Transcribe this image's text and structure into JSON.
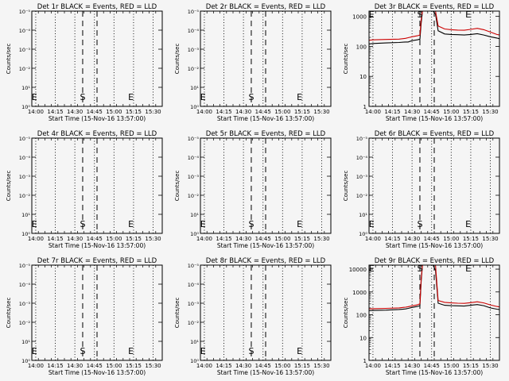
{
  "chart_data": [
    {
      "type": "line",
      "title": "Det 1r BLACK = Events, RED = LLD",
      "xlabel": "Start Time (15-Nov-16 13:57:00)",
      "ylabel": "Counts/sec",
      "ylog": true,
      "y_tick_labels": [
        "10⁰",
        "10¹",
        "10⁻²",
        "10⁻³",
        "10⁻⁴",
        "10⁻⁵"
      ],
      "x_tick_labels": [
        "14:00",
        "14:15",
        "14:30",
        "14:45",
        "15:00",
        "15:15",
        "15:30"
      ],
      "x_range": [
        "13:57",
        "15:37"
      ],
      "markers": [
        {
          "label": "E",
          "time": "13:59"
        },
        {
          "label": "S",
          "time": "14:36"
        },
        {
          "label": "E",
          "time": "15:13"
        }
      ],
      "series": []
    },
    {
      "type": "line",
      "title": "Det 2r BLACK = Events, RED = LLD",
      "xlabel": "Start Time (15-Nov-16 13:57:00)",
      "ylabel": "Counts/sec",
      "ylog": true,
      "y_tick_labels": [
        "10⁰",
        "10¹",
        "10⁻²",
        "10⁻³",
        "10⁻⁴",
        "10⁻⁵"
      ],
      "x_tick_labels": [
        "14:00",
        "14:15",
        "14:30",
        "14:45",
        "15:00",
        "15:15",
        "15:30"
      ],
      "x_range": [
        "13:57",
        "15:37"
      ],
      "markers": [
        {
          "label": "E",
          "time": "13:59"
        },
        {
          "label": "S",
          "time": "14:36"
        },
        {
          "label": "E",
          "time": "15:13"
        }
      ],
      "series": []
    },
    {
      "type": "line",
      "title": "Det 3r BLACK = Events, RED = LLD",
      "xlabel": "Start Time (15-Nov-16 13:57:00)",
      "ylabel": "Counts/sec",
      "ylog": true,
      "y_tick_labels": [
        "1",
        "10",
        "100",
        "1000"
      ],
      "x_tick_labels": [
        "14:00",
        "14:15",
        "14:30",
        "14:45",
        "15:00",
        "15:15",
        "15:30"
      ],
      "x_range": [
        "13:57",
        "15:37"
      ],
      "ylim": [
        1,
        1500
      ],
      "markers": [
        {
          "label": "E",
          "time": "13:59"
        },
        {
          "label": "S",
          "time": "14:36"
        },
        {
          "label": "E",
          "time": "15:13"
        }
      ],
      "series": [
        {
          "color": "#000000",
          "times": [
            "13:57",
            "14:00",
            "14:10",
            "14:20",
            "14:25",
            "14:27",
            "14:30",
            "14:34",
            "14:36",
            "14:37",
            "14:38",
            "14:40",
            "14:44",
            "14:46",
            "14:48",
            "14:50",
            "14:55",
            "15:00",
            "15:05",
            "15:10",
            "15:15",
            "15:20",
            "15:25",
            "15:30",
            "15:35",
            "15:37"
          ],
          "values": [
            120,
            125,
            130,
            135,
            140,
            140,
            155,
            165,
            175,
            600,
            1500,
            1500,
            1500,
            1500,
            1200,
            330,
            260,
            250,
            245,
            240,
            250,
            265,
            240,
            210,
            190,
            180
          ]
        },
        {
          "color": "#cc0000",
          "times": [
            "13:57",
            "14:00",
            "14:10",
            "14:20",
            "14:25",
            "14:27",
            "14:30",
            "14:34",
            "14:36",
            "14:37",
            "14:38",
            "14:40",
            "14:44",
            "14:46",
            "14:48",
            "14:50",
            "14:55",
            "15:00",
            "15:05",
            "15:10",
            "15:15",
            "15:20",
            "15:25",
            "15:30",
            "15:35",
            "15:37"
          ],
          "values": [
            160,
            165,
            170,
            175,
            185,
            195,
            210,
            225,
            240,
            800,
            1500,
            1500,
            1500,
            1500,
            1500,
            480,
            380,
            360,
            350,
            345,
            370,
            400,
            360,
            300,
            250,
            240
          ]
        }
      ]
    },
    {
      "type": "line",
      "title": "Det 4r BLACK = Events, RED = LLD",
      "xlabel": "Start Time (15-Nov-16 13:57:00)",
      "ylabel": "Counts/sec",
      "ylog": true,
      "y_tick_labels": [
        "10⁰",
        "10¹",
        "10⁻²",
        "10⁻³",
        "10⁻⁴",
        "10⁻⁵"
      ],
      "x_tick_labels": [
        "14:00",
        "14:15",
        "14:30",
        "14:45",
        "15:00",
        "15:15",
        "15:30"
      ],
      "x_range": [
        "13:57",
        "15:37"
      ],
      "markers": [
        {
          "label": "E",
          "time": "13:59"
        },
        {
          "label": "S",
          "time": "14:36"
        },
        {
          "label": "E",
          "time": "15:13"
        }
      ],
      "series": []
    },
    {
      "type": "line",
      "title": "Det 5r BLACK = Events, RED = LLD",
      "xlabel": "Start Time (15-Nov-16 13:57:00)",
      "ylabel": "Counts/sec",
      "ylog": true,
      "y_tick_labels": [
        "10⁰",
        "10¹",
        "10⁻²",
        "10⁻³",
        "10⁻⁴",
        "10⁻⁵"
      ],
      "x_tick_labels": [
        "14:00",
        "14:15",
        "14:30",
        "14:45",
        "15:00",
        "15:15",
        "15:30"
      ],
      "x_range": [
        "13:57",
        "15:37"
      ],
      "markers": [
        {
          "label": "E",
          "time": "13:59"
        },
        {
          "label": "S",
          "time": "14:36"
        },
        {
          "label": "E",
          "time": "15:13"
        }
      ],
      "series": []
    },
    {
      "type": "line",
      "title": "Det 6r BLACK = Events, RED = LLD",
      "xlabel": "Start Time (15-Nov-16 13:57:00)",
      "ylabel": "Counts/sec",
      "ylog": true,
      "y_tick_labels": [
        "10⁰",
        "10¹",
        "10⁻²",
        "10⁻³",
        "10⁻⁴",
        "10⁻⁵"
      ],
      "x_tick_labels": [
        "14:00",
        "14:15",
        "14:30",
        "14:45",
        "15:00",
        "15:15",
        "15:30"
      ],
      "x_range": [
        "13:57",
        "15:37"
      ],
      "markers": [
        {
          "label": "E",
          "time": "13:59"
        },
        {
          "label": "S",
          "time": "14:36"
        },
        {
          "label": "E",
          "time": "15:13"
        }
      ],
      "series": []
    },
    {
      "type": "line",
      "title": "Det 7r BLACK = Events, RED = LLD",
      "xlabel": "Start Time (15-Nov-16 13:57:00)",
      "ylabel": "Counts/sec",
      "ylog": true,
      "y_tick_labels": [
        "10⁰",
        "10¹",
        "10⁻²",
        "10⁻³",
        "10⁻⁴",
        "10⁻⁵"
      ],
      "x_tick_labels": [
        "14:00",
        "14:15",
        "14:30",
        "14:45",
        "15:00",
        "15:15",
        "15:30"
      ],
      "x_range": [
        "13:57",
        "15:37"
      ],
      "markers": [
        {
          "label": "E",
          "time": "13:59"
        },
        {
          "label": "S",
          "time": "14:36"
        },
        {
          "label": "E",
          "time": "15:13"
        }
      ],
      "series": []
    },
    {
      "type": "line",
      "title": "Det 8r BLACK = Events, RED = LLD",
      "xlabel": "Start Time (15-Nov-16 13:57:00)",
      "ylabel": "Counts/sec",
      "ylog": true,
      "y_tick_labels": [
        "10⁰",
        "10¹",
        "10⁻²",
        "10⁻³",
        "10⁻⁴",
        "10⁻⁵"
      ],
      "x_tick_labels": [
        "14:00",
        "14:15",
        "14:30",
        "14:45",
        "15:00",
        "15:15",
        "15:30"
      ],
      "x_range": [
        "13:57",
        "15:37"
      ],
      "markers": [
        {
          "label": "E",
          "time": "13:59"
        },
        {
          "label": "S",
          "time": "14:36"
        },
        {
          "label": "E",
          "time": "15:13"
        }
      ],
      "series": []
    },
    {
      "type": "line",
      "title": "Det 9r BLACK = Events, RED = LLD",
      "xlabel": "Start Time (15-Nov-16 13:57:00)",
      "ylabel": "Counts/sec",
      "ylog": true,
      "y_tick_labels": [
        "1",
        "10",
        "100",
        "1000",
        "10000"
      ],
      "x_tick_labels": [
        "14:00",
        "14:15",
        "14:30",
        "14:45",
        "15:00",
        "15:15",
        "15:30"
      ],
      "x_range": [
        "13:57",
        "15:37"
      ],
      "ylim": [
        1,
        15000
      ],
      "markers": [
        {
          "label": "E",
          "time": "13:59"
        },
        {
          "label": "S",
          "time": "14:36"
        },
        {
          "label": "E",
          "time": "15:13"
        }
      ],
      "series": [
        {
          "color": "#000000",
          "times": [
            "13:57",
            "14:00",
            "14:10",
            "14:20",
            "14:25",
            "14:27",
            "14:30",
            "14:34",
            "14:36",
            "14:37",
            "14:38",
            "14:40",
            "14:44",
            "14:46",
            "14:48",
            "14:50",
            "14:55",
            "15:00",
            "15:05",
            "15:10",
            "15:15",
            "15:20",
            "15:25",
            "15:30",
            "15:35",
            "15:37"
          ],
          "values": [
            150,
            155,
            160,
            170,
            180,
            190,
            210,
            230,
            250,
            3000,
            15000,
            15000,
            15000,
            15000,
            9000,
            320,
            260,
            250,
            245,
            240,
            260,
            280,
            250,
            200,
            175,
            170
          ]
        },
        {
          "color": "#cc0000",
          "times": [
            "13:57",
            "14:00",
            "14:10",
            "14:20",
            "14:25",
            "14:27",
            "14:30",
            "14:34",
            "14:36",
            "14:37",
            "14:38",
            "14:40",
            "14:44",
            "14:46",
            "14:48",
            "14:50",
            "14:55",
            "15:00",
            "15:05",
            "15:10",
            "15:15",
            "15:20",
            "15:25",
            "15:30",
            "15:35",
            "15:37"
          ],
          "values": [
            180,
            185,
            190,
            200,
            215,
            225,
            245,
            270,
            300,
            4000,
            15000,
            15000,
            15000,
            15000,
            15000,
            420,
            350,
            330,
            320,
            315,
            340,
            370,
            330,
            270,
            230,
            220
          ]
        }
      ]
    }
  ]
}
